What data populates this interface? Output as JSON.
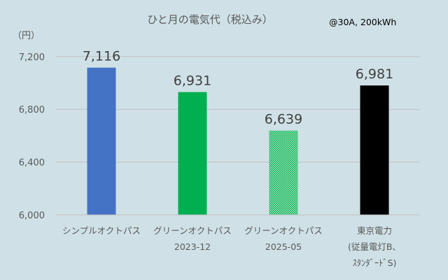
{
  "chart_data": {
    "type": "bar",
    "title": "ひと月の電気代（税込み）",
    "subtitle": "@30A, 200kWh",
    "ylabel": "（円）",
    "ylim": [
      6000,
      7300
    ],
    "yticks": [
      6000,
      6400,
      6800,
      7200
    ],
    "ytick_labels": [
      "6,000",
      "6,400",
      "6,800",
      "7,200"
    ],
    "grid": true,
    "categories": [
      [
        "シンプルオクトパス"
      ],
      [
        "グリーンオクトパス",
        "2023-12"
      ],
      [
        "グリーンオクトパス",
        "2025-05"
      ],
      [
        "東京電力",
        "(従量電灯B、",
        "ｽﾀﾝﾀﾞｰﾄﾞS)"
      ]
    ],
    "values": [
      7116,
      6931,
      6639,
      6981
    ],
    "value_labels": [
      "7,116",
      "6,931",
      "6,639",
      "6,981"
    ],
    "colors": [
      "#4472c4",
      "#00b050",
      "#00b050",
      "#000000"
    ],
    "patterns": [
      "solid",
      "solid",
      "dotted",
      "solid"
    ]
  }
}
